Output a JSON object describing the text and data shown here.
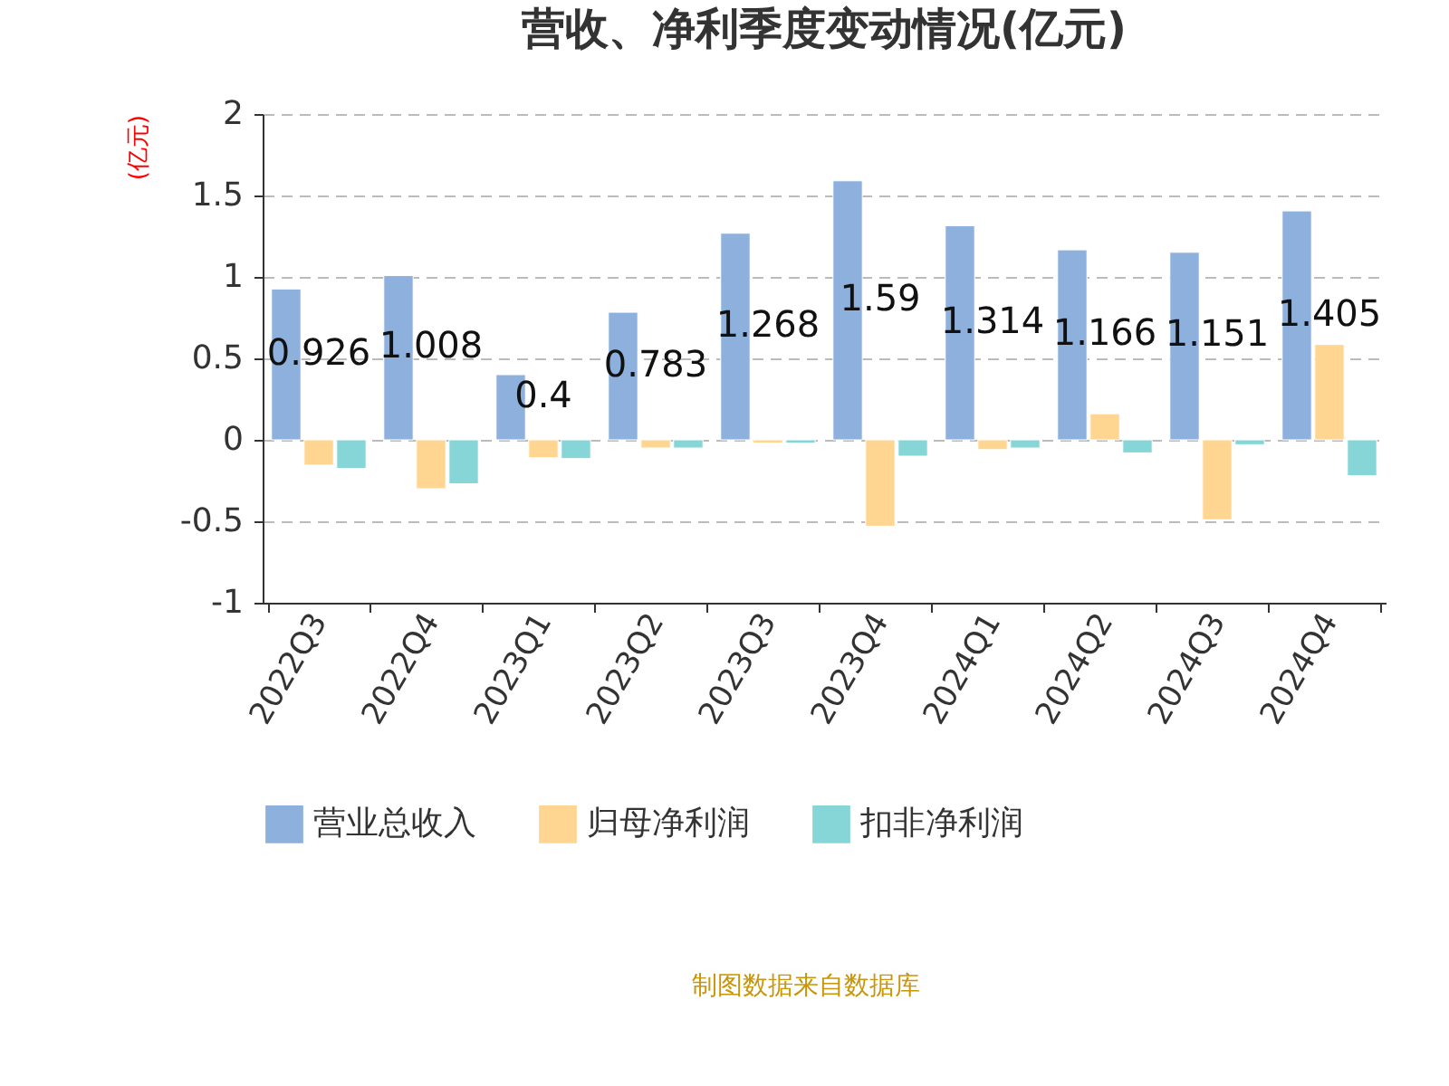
{
  "chart_data": {
    "type": "bar",
    "title": "营收、净利季度变动情况(亿元)",
    "ylabel": "(亿元)",
    "categories": [
      "2022Q3",
      "2022Q4",
      "2023Q1",
      "2023Q2",
      "2023Q3",
      "2023Q4",
      "2024Q1",
      "2024Q2",
      "2024Q3",
      "2024Q4"
    ],
    "series": [
      {
        "name": "营业总收入",
        "color": "#8eb0dd",
        "values": [
          0.926,
          1.008,
          0.4,
          0.783,
          1.268,
          1.59,
          1.314,
          1.166,
          1.151,
          1.405
        ],
        "value_labels": [
          "0.926",
          "1.008",
          "0.4",
          "0.783",
          "1.268",
          "1.59",
          "1.314",
          "1.166",
          "1.151",
          "1.405"
        ]
      },
      {
        "name": "归母净利润",
        "color": "#ffd592",
        "values": [
          -0.155,
          -0.3,
          -0.11,
          -0.05,
          -0.02,
          -0.53,
          -0.06,
          0.16,
          -0.49,
          0.585
        ]
      },
      {
        "name": "扣非净利润",
        "color": "#86d6d8",
        "values": [
          -0.175,
          -0.27,
          -0.115,
          -0.05,
          -0.02,
          -0.1,
          -0.05,
          -0.08,
          -0.03,
          -0.22
        ]
      }
    ],
    "ylim": [
      -1,
      2
    ],
    "yticks": [
      -1,
      -0.5,
      0,
      0.5,
      1,
      1.5,
      2
    ],
    "grid": "y",
    "legend": "bottom",
    "annotations": [
      "制图数据来自数据库"
    ]
  }
}
